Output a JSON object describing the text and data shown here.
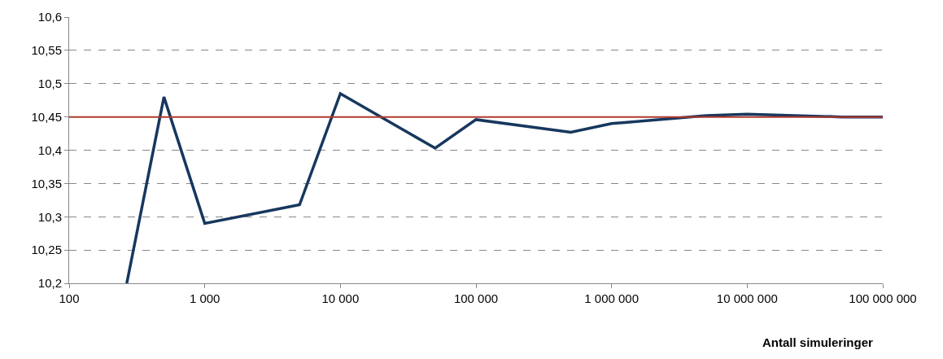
{
  "chart_data": {
    "type": "line",
    "xlabel": "Antall simuleringer",
    "x": [
      266,
      500,
      1000,
      5000,
      10000,
      50000,
      100000,
      500000,
      1000000,
      5000000,
      10000000,
      50000000,
      100000000
    ],
    "series": [
      {
        "color": "#17375e",
        "values": [
          10.2,
          10.48,
          10.29,
          10.318,
          10.485,
          10.403,
          10.446,
          10.427,
          10.44,
          10.452,
          10.454,
          10.45,
          10.45
        ]
      }
    ],
    "ref_lines": [
      {
        "axis": "y",
        "value": 10.45,
        "color": "#b03a2e"
      }
    ],
    "log": "x",
    "xlim": [
      100,
      100000000
    ],
    "xticks": [
      100,
      {
        "value": 1000,
        "label": "1 000"
      },
      {
        "value": 10000,
        "label": "10 000"
      },
      {
        "value": 100000,
        "label": "100 000"
      },
      {
        "value": 1000000,
        "label": "1 000 000"
      },
      {
        "value": 10000000,
        "label": "10 000 000"
      },
      {
        "value": 100000000,
        "label": "100 000 000"
      }
    ],
    "ylim": [
      10.2,
      10.6
    ],
    "yticks": [
      {
        "value": 10.2,
        "label": "10,2"
      },
      {
        "value": 10.25,
        "label": "10,25"
      },
      {
        "value": 10.3,
        "label": "10,3"
      },
      {
        "value": 10.35,
        "label": "10,35"
      },
      {
        "value": 10.4,
        "label": "10,4"
      },
      {
        "value": 10.45,
        "label": "10,45"
      },
      {
        "value": 10.5,
        "label": "10,5"
      },
      {
        "value": 10.55,
        "label": "10,55"
      },
      {
        "value": 10.6,
        "label": "10,6"
      }
    ],
    "grid": "y",
    "marker": "none",
    "line_style": "solid"
  }
}
